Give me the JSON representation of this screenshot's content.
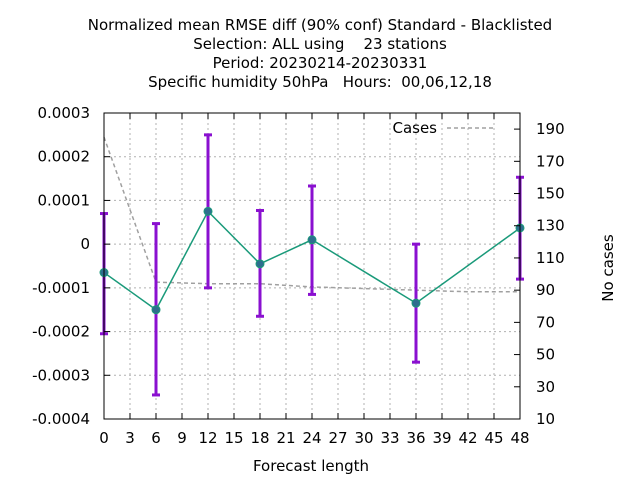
{
  "title_lines": [
    "Normalized mean RMSE diff (90% conf) Standard - Blacklisted",
    "Selection: ALL using    23 stations",
    "Period: 20230214-20230331",
    "Specific humidity 50hPa   Hours:  00,06,12,18"
  ],
  "colors": {
    "diff_line": "#1a9a7a",
    "diff_marker": "#2e6e8e",
    "error_bar": "#8a10d0",
    "cases_line": "#a0a0a0",
    "grid": "#b0b0b0"
  },
  "chart_data": {
    "type": "line",
    "xlabel": "Forecast length",
    "ylabel": "",
    "y2label": "No cases",
    "xlim": [
      0,
      48
    ],
    "ylim": [
      -0.0004,
      0.0003
    ],
    "y2lim": [
      10,
      200
    ],
    "x_ticks": [
      0,
      3,
      6,
      9,
      12,
      15,
      18,
      21,
      24,
      27,
      30,
      33,
      36,
      39,
      42,
      45,
      48
    ],
    "y_ticks": [
      {
        "value": -0.0004,
        "label": "-0.0004"
      },
      {
        "value": -0.0003,
        "label": "-0.0003"
      },
      {
        "value": -0.0002,
        "label": "-0.0002"
      },
      {
        "value": -0.0001,
        "label": "-0.0001"
      },
      {
        "value": 0,
        "label": "0"
      },
      {
        "value": 0.0001,
        "label": "0.0001"
      },
      {
        "value": 0.0002,
        "label": "0.0002"
      },
      {
        "value": 0.0003,
        "label": "0.0003"
      }
    ],
    "y2_ticks": [
      10,
      30,
      50,
      70,
      90,
      110,
      130,
      150,
      170,
      190
    ],
    "grid": true,
    "legend_position": "top-right",
    "series": [
      {
        "name": "",
        "x": [
          0,
          6,
          12,
          18,
          24,
          36,
          48
        ],
        "y": [
          -6.5e-05,
          -0.00015,
          7.5e-05,
          -4.5e-05,
          1e-05,
          -0.000135,
          3.7e-05
        ],
        "y_low": [
          -0.000205,
          -0.000345,
          -0.0001,
          -0.000165,
          -0.000115,
          -0.00027,
          -8e-05
        ],
        "y_high": [
          7e-05,
          4.7e-05,
          0.00025,
          7.7e-05,
          0.000133,
          0.0,
          0.000153
        ]
      },
      {
        "name": "Cases",
        "axis": "y2",
        "x": [
          0,
          6,
          12,
          18,
          24,
          30,
          36,
          42,
          48
        ],
        "y": [
          185,
          95,
          94,
          94,
          92,
          91,
          90,
          89,
          89
        ]
      }
    ]
  }
}
